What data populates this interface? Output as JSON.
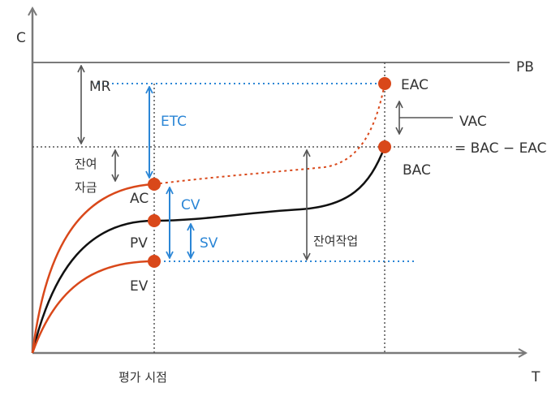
{
  "axes": {
    "y_label": "C",
    "x_label": "T",
    "x_marker_label": "평가 시점"
  },
  "reference_lines": {
    "pb": "PB"
  },
  "points": {
    "eac": "EAC",
    "bac": "BAC",
    "ac": "AC",
    "pv": "PV",
    "ev": "EV"
  },
  "measures": {
    "mr": "MR",
    "etc": "ETC",
    "remaining_funds_line1": "잔여",
    "remaining_funds_line2": "자금",
    "cv": "CV",
    "sv": "SV",
    "remaining_work": "잔여작업",
    "vac": "VAC",
    "vac_formula": "= BAC − EAC"
  },
  "colors": {
    "actual_cost": "#d9481a",
    "planned_value": "#111111",
    "earned_value": "#d9481a",
    "variance_arrows": "#2b86d6",
    "guide_lines": "#555555",
    "point_marker": "#d9481a"
  }
}
